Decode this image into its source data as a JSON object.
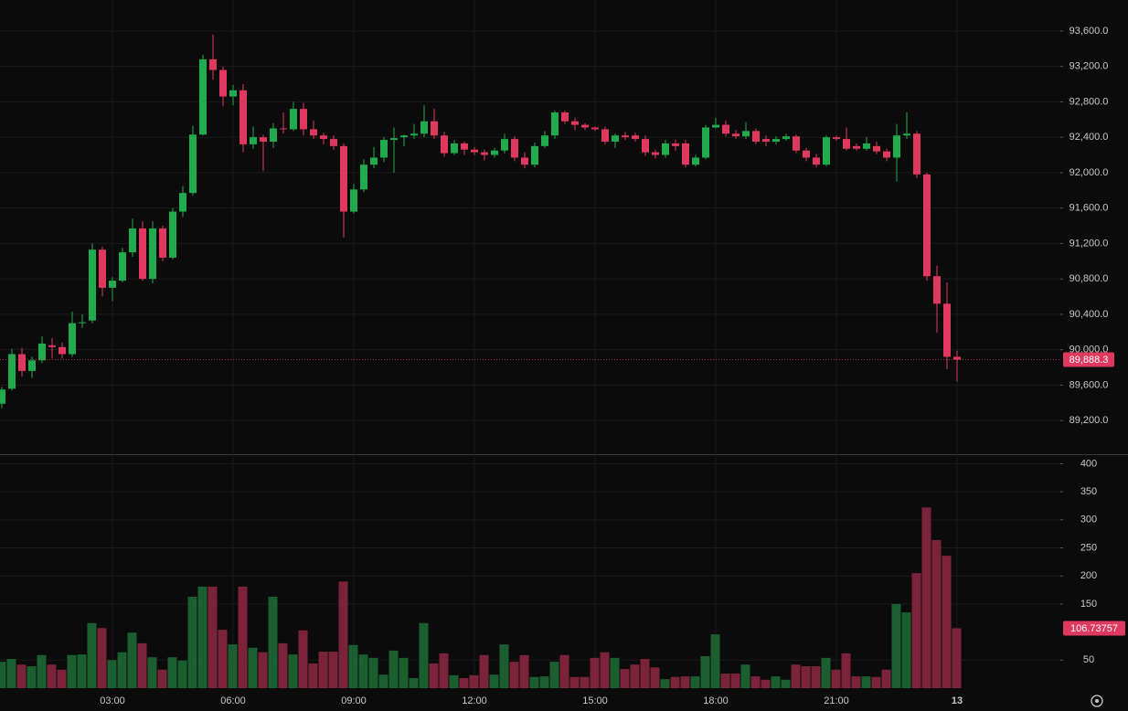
{
  "chart_data": [
    {
      "type": "candlestick",
      "up_color": "#22ab4e",
      "down_color": "#e0395f",
      "open": [
        89390,
        89560,
        89950,
        89760,
        89880,
        90050,
        90030,
        89950,
        90300,
        90330,
        91130,
        90700,
        90780,
        91100,
        91370,
        90800,
        91370,
        91040,
        91560,
        91770,
        92430,
        93280,
        93160,
        92860,
        92930,
        92320,
        92400,
        92350,
        92500,
        92490,
        92720,
        92490,
        92420,
        92380,
        92300,
        91560,
        91810,
        92090,
        92170,
        92370,
        92400,
        92420,
        92440,
        92580,
        92420,
        92220,
        92330,
        92260,
        92230,
        92200,
        92250,
        92380,
        92170,
        92090,
        92300,
        92420,
        92680,
        92580,
        92540,
        92510,
        92490,
        92350,
        92420,
        92420,
        92380,
        92230,
        92200,
        92330,
        92330,
        92090,
        92170,
        92510,
        92540,
        92440,
        92410,
        92470,
        92380,
        92350,
        92380,
        92410,
        92250,
        92170,
        92090,
        92400,
        92380,
        92300,
        92270,
        92300,
        92240,
        92170,
        92420,
        92440,
        91980,
        90830,
        90520,
        89920
      ],
      "high": [
        89580,
        90010,
        90020,
        89920,
        90150,
        90130,
        90080,
        90430,
        90400,
        91200,
        91160,
        90820,
        91150,
        91480,
        91450,
        91450,
        91400,
        91600,
        91850,
        92530,
        93330,
        93560,
        93200,
        92990,
        93000,
        92520,
        92430,
        92560,
        92680,
        92800,
        92790,
        92590,
        92450,
        92420,
        92330,
        91870,
        92150,
        92290,
        92400,
        92510,
        92430,
        92550,
        92760,
        92720,
        92460,
        92370,
        92350,
        92290,
        92260,
        92280,
        92440,
        92410,
        92230,
        92340,
        92470,
        92700,
        92700,
        92620,
        92560,
        92520,
        92520,
        92440,
        92460,
        92450,
        92420,
        92260,
        92370,
        92370,
        92370,
        92200,
        92540,
        92620,
        92590,
        92480,
        92570,
        92500,
        92420,
        92410,
        92440,
        92430,
        92280,
        92210,
        92420,
        92420,
        92510,
        92330,
        92400,
        92350,
        92270,
        92550,
        92680,
        92470,
        92000,
        90950,
        90760,
        89990
      ],
      "low": [
        89340,
        89540,
        89700,
        89680,
        89850,
        89900,
        89900,
        89920,
        90250,
        90300,
        90600,
        90550,
        90760,
        91050,
        90780,
        90750,
        91000,
        91020,
        91500,
        91740,
        92420,
        93050,
        92750,
        92760,
        92230,
        92270,
        92020,
        92280,
        92440,
        92470,
        92420,
        92380,
        92320,
        92260,
        91270,
        91540,
        91780,
        92050,
        92120,
        92000,
        92300,
        92380,
        92400,
        92380,
        92180,
        92200,
        92200,
        92200,
        92140,
        92170,
        92220,
        92130,
        92050,
        92060,
        92280,
        92380,
        92550,
        92480,
        92480,
        92470,
        92320,
        92280,
        92370,
        92350,
        92190,
        92160,
        92170,
        92250,
        92060,
        92070,
        92150,
        92500,
        92410,
        92380,
        92380,
        92320,
        92300,
        92320,
        92360,
        92220,
        92130,
        92060,
        92070,
        92360,
        92250,
        92250,
        92250,
        92210,
        92130,
        91900,
        92380,
        91940,
        90780,
        90190,
        89780,
        89640
      ],
      "close": [
        89550,
        89950,
        89760,
        89880,
        90070,
        90030,
        89950,
        90300,
        90310,
        91130,
        90700,
        90780,
        91100,
        91370,
        90800,
        91370,
        91040,
        91560,
        91770,
        92430,
        93280,
        93160,
        92860,
        92930,
        92320,
        92400,
        92350,
        92500,
        92490,
        92720,
        92490,
        92420,
        92380,
        92300,
        91560,
        91810,
        92090,
        92170,
        92370,
        92390,
        92420,
        92440,
        92580,
        92420,
        92220,
        92330,
        92260,
        92230,
        92200,
        92250,
        92380,
        92170,
        92090,
        92300,
        92420,
        92680,
        92580,
        92540,
        92510,
        92490,
        92350,
        92420,
        92400,
        92380,
        92230,
        92200,
        92330,
        92300,
        92090,
        92170,
        92510,
        92540,
        92440,
        92410,
        92470,
        92350,
        92350,
        92380,
        92410,
        92250,
        92170,
        92090,
        92400,
        92380,
        92270,
        92270,
        92330,
        92240,
        92170,
        92420,
        92440,
        91980,
        90830,
        90520,
        89920,
        89888.3
      ],
      "last_price_label": "89,888.3",
      "ylim": [
        88820,
        93950
      ],
      "yticks": [
        {
          "value": 89200,
          "label": "89,200.0"
        },
        {
          "value": 89600,
          "label": "89,600.0"
        },
        {
          "value": 90000,
          "label": "90,000.0"
        },
        {
          "value": 90400,
          "label": "90,400.0"
        },
        {
          "value": 90800,
          "label": "90,800.0"
        },
        {
          "value": 91200,
          "label": "91,200.0"
        },
        {
          "value": 91600,
          "label": "91,600.0"
        },
        {
          "value": 92000,
          "label": "92,000.0"
        },
        {
          "value": 92400,
          "label": "92,400.0"
        },
        {
          "value": 92800,
          "label": "92,800.0"
        },
        {
          "value": 93200,
          "label": "93,200.0"
        },
        {
          "value": 93600,
          "label": "93,600.0"
        }
      ],
      "grid": true
    },
    {
      "type": "bar",
      "up_color": "#1b5e30",
      "down_color": "#7b2439",
      "categories": [
        null,
        null,
        null,
        null,
        null,
        null,
        null,
        null,
        null,
        null,
        null,
        "03:00",
        null,
        null,
        null,
        null,
        null,
        null,
        null,
        null,
        null,
        null,
        null,
        "06:00",
        null,
        null,
        null,
        null,
        null,
        null,
        null,
        null,
        null,
        null,
        null,
        "09:00",
        null,
        null,
        null,
        null,
        null,
        null,
        null,
        null,
        null,
        null,
        null,
        "12:00",
        null,
        null,
        null,
        null,
        null,
        null,
        null,
        null,
        null,
        null,
        null,
        "15:00",
        null,
        null,
        null,
        null,
        null,
        null,
        null,
        null,
        null,
        null,
        null,
        "18:00",
        null,
        null,
        null,
        null,
        null,
        null,
        null,
        null,
        null,
        null,
        null,
        "21:00",
        null,
        null,
        null,
        null,
        null,
        null,
        null,
        null,
        null,
        null,
        null,
        "13"
      ],
      "values": [
        47,
        52,
        42,
        39,
        59,
        42,
        33,
        59,
        60,
        116,
        107,
        50,
        64,
        99,
        80,
        55,
        33,
        55,
        49,
        163,
        181,
        181,
        104,
        78,
        181,
        72,
        64,
        163,
        80,
        60,
        103,
        44,
        65,
        65,
        190,
        77,
        60,
        54,
        24,
        67,
        54,
        18,
        116,
        44,
        62,
        23,
        18,
        23,
        59,
        24,
        78,
        47,
        59,
        20,
        21,
        47,
        59,
        20,
        20,
        54,
        64,
        54,
        34,
        42,
        52,
        37,
        16,
        20,
        21,
        21,
        57,
        96,
        26,
        26,
        42,
        21,
        15,
        21,
        15,
        42,
        39,
        39,
        54,
        33,
        62,
        21,
        21,
        20,
        33,
        150,
        135,
        205,
        322,
        264,
        236,
        106.73757
      ],
      "ylim": [
        0,
        417
      ],
      "yticks": [
        50,
        150,
        200,
        250,
        300,
        350,
        400
      ],
      "grid": true
    }
  ]
}
